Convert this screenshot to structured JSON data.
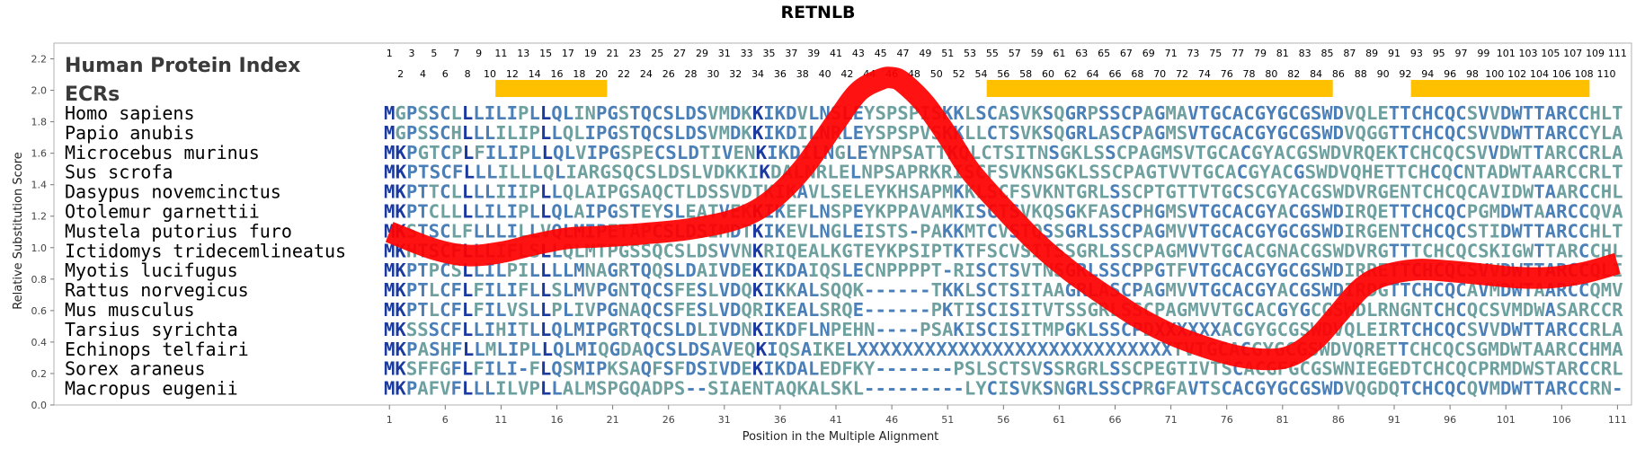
{
  "chart_data": {
    "type": "line",
    "title": "RETNLB",
    "xlabel": "Position in the Multiple Alignment",
    "ylabel": "Relative Substitution Score",
    "xlim": [
      1,
      111
    ],
    "ylim": [
      0.0,
      2.3
    ],
    "yticks": [
      "0.0",
      "0.2",
      "0.4",
      "0.6",
      "0.8",
      "1.0",
      "1.2",
      "1.4",
      "1.6",
      "1.8",
      "2.0",
      "2.2"
    ],
    "xticks": [
      1,
      6,
      11,
      16,
      21,
      26,
      31,
      36,
      41,
      46,
      51,
      56,
      61,
      66,
      71,
      76,
      81,
      86,
      91,
      96,
      101,
      106,
      111
    ],
    "series": [
      {
        "color": "#ff0000",
        "x": [
          1,
          5,
          8,
          11,
          14,
          17,
          20,
          24,
          28,
          32,
          35,
          38,
          41,
          43,
          45,
          46,
          47,
          49,
          51,
          53,
          56,
          59,
          62,
          65,
          68,
          71,
          74,
          77,
          80,
          82,
          84,
          86,
          88,
          90,
          93,
          96,
          99,
          102,
          105,
          108,
          111
        ],
        "y": [
          1.1,
          0.99,
          0.95,
          0.97,
          1.02,
          1.06,
          1.07,
          1.09,
          1.12,
          1.18,
          1.29,
          1.5,
          1.8,
          1.99,
          2.07,
          2.08,
          2.05,
          1.91,
          1.71,
          1.49,
          1.25,
          1.03,
          0.85,
          0.7,
          0.56,
          0.45,
          0.37,
          0.31,
          0.29,
          0.32,
          0.42,
          0.58,
          0.74,
          0.82,
          0.86,
          0.85,
          0.83,
          0.81,
          0.81,
          0.84,
          0.9
        ]
      }
    ],
    "grid": false,
    "legend": "none"
  },
  "panel": {
    "header_index_label": "Human Protein Index",
    "header_ecrs_label": "ECRs",
    "index_top": [
      "1",
      "3",
      "5",
      "7",
      "9",
      "11",
      "13",
      "15",
      "17",
      "19",
      "21",
      "23",
      "25",
      "27",
      "29",
      "31",
      "33",
      "35",
      "37",
      "39",
      "41",
      "43",
      "45",
      "47",
      "49",
      "51",
      "53",
      "55",
      "57",
      "59",
      "61",
      "63",
      "65",
      "67",
      "69",
      "71",
      "73",
      "75",
      "77",
      "79",
      "81",
      "83",
      "85",
      "87",
      "89",
      "91",
      "93",
      "95",
      "97",
      "99",
      "101",
      "103",
      "105",
      "107",
      "109",
      "111"
    ],
    "index_bottom": [
      "2",
      "4",
      "6",
      "8",
      "10",
      "12",
      "14",
      "16",
      "18",
      "20",
      "22",
      "24",
      "26",
      "28",
      "30",
      "32",
      "34",
      "36",
      "38",
      "40",
      "42",
      "44",
      "46",
      "48",
      "50",
      "52",
      "54",
      "56",
      "58",
      "60",
      "62",
      "64",
      "66",
      "68",
      "70",
      "72",
      "74",
      "76",
      "78",
      "80",
      "82",
      "84",
      "86",
      "88",
      "90",
      "92",
      "94",
      "96",
      "98",
      "100",
      "102",
      "104",
      "106",
      "108",
      "110"
    ],
    "ecr_regions": [
      [
        11,
        20
      ],
      [
        55,
        85
      ],
      [
        93,
        108
      ]
    ],
    "ecr_color": "#ffc000",
    "colors": {
      "conserved": "#1a3aa0",
      "partial": "#4a7fb8",
      "variable": "#6fa0a0"
    },
    "rows": [
      {
        "species": "Homo sapiens",
        "sequence": "MGPSSCLLLILIPLLQLINPGSTQCSLDSVMDKKIKDVLNSLEYSPSPISKKLSCASVKSQGRPSSCPAGMAVTGCACGYGCGSWDVQLETTCHCQCSVVDWTTARCCHLT"
      },
      {
        "species": "Papio anubis",
        "sequence": "MGPSSCHLLLILIPLLQLIPGSTQCSLDSVMDKKIKDILNRLEYSPSPVSKKLLCTSVKSQGRLASCPAGMSVTGCACGYGCGSWDVQGGTTCHCQCSVVDWTTARCCYLA"
      },
      {
        "species": "Microcebus murinus",
        "sequence": "MKPGTCPLFILIPLLQLVIPGSPECSLDTIVENKIKDILNGLEYNPSATTKQLCTSITNSGKLSSCPAGMSVTGCACGYACGSWDVRQEKTCHCQCSVVDWTTARCCRLA"
      },
      {
        "species": "Sus scrofa",
        "sequence": "MKPTSCFLLLILLLQLIARGSQCSLDSLVDKKIKDALNRLELNPSAPRKRISCFSVKNSGKLSSCPAGTVVTGCACGYACGSWDVQHETTCHCQCNTADWTAARCCRLT"
      },
      {
        "species": "Dasypus novemcinctus",
        "sequence": "MKPTTCLLLLIIIPLLQLAIPGSAQCTLDSSVDTKIKAVLSELEYKHSAPMKKLSCFSVKNTGRLSSCPTGTTVTGCSCGYACGSWDVRGENTCHCQCAVIDWTAARCCHLS"
      },
      {
        "species": "Otolemur garnettii",
        "sequence": "MKPTCLLLLILIPLLQLAIPGSTEYSLEATVEKKIKEFLNSPEYKPPAVAMKISCTSVKQSGKFASCPHGMSVTGCACGYACGSWDIRQETTCHCQCPGMDWTAARCCQVA"
      },
      {
        "species": "Mustela putorius furo",
        "sequence": "MKSTSCLFLLLILLVQLMIPETAPCSLDSIMDTKIKEVLNGLEISTS-PAKKMTCVSTQSSGRLSSCPAGMVVTGCACGYGCGSWDIRGENTCHCQCSTIDWTTARCCHLT"
      },
      {
        "species": "Ictidomys tridecemlineatus",
        "sequence": "MKHTSCFLLLIFLSLLQLMTPGSSQCSLDSVVNKRIQEALKGTEYKPSIPTKTFSCVSITSSGRLSSCPAGMVVTGCACGNACGSWDVRGTTTCHCQCSKIGWTTARCCHLA"
      },
      {
        "species": "Myotis lucifugus",
        "sequence": "MKPTPCSLLILPILLLLMNAGRTQQSLDAIVDEKIKDAIQSLECNPPPPT-RISCTSVTNSGRLSSCPPGTFVTGCACGYGCGSWDIRRETTCHCQCSVVDWTTARCCQLI"
      },
      {
        "species": "Rattus norvegicus",
        "sequence": "MKPTLCFLFILIFLLSLMVPGNTQCSFESLVDQKIKKALSQQK------TKKLSCTSITAAGRLASCPAGMVVTGCACGYACGSWDIRDGTTCHCQCAVMDWTAARCCQMV"
      },
      {
        "species": "Mus musculus",
        "sequence": "MKPTLCFLFILVSLLPLIVPGNAQCSFESLVDQRIKEALSRQE------PKTISCISITVTSSGRLSSCPAGMVVTGCACGYGCGSWDLRNGNTCHCQCSVMDWASARCCRMA"
      },
      {
        "species": "Tarsius syrichta",
        "sequence": "MKSSSCFLLIHITLLQLMIPGRTQCSLDLIVDNKIKDFLNPEHN----PSAKISCISITMPGKLSSCPDXXXXXXACGYGCGSWDVQLEIRTCHCQCSVVDWTTARCCRLA"
      },
      {
        "species": "Echinops telfairi",
        "sequence": "MKPASHFLLMLIPLLQLMIQGDAQCSLDSAVEQKIQSAIKELXXXXXXXXXXXXXXXXXXXXXXXXXXXXTVTGCACGYGCGSWDVQRETTCHCQCSGMDWTAARCCHMA"
      },
      {
        "species": "Sorex araneus",
        "sequence": "MKSFFGFLFILI-FLQSMIPKSAQFSFDSIVDEKIKDALEDFKY-------PSLSCTSVSSRGRLSSCPEGTIVTSCACGFGCGSWNIEGEDTCHCQCPRMDWSTARCCRLN"
      },
      {
        "species": "Macropus eugenii",
        "sequence": "MKPAFVFLLLILVPLLALMSPGQADPS--SIAENTAQKALSKL---------LYCISVKSNGRLSSCPRGFAVTSCACGYGCGSWDVQGDQTCHCQCQVMDWTTARCCRN-"
      }
    ]
  }
}
